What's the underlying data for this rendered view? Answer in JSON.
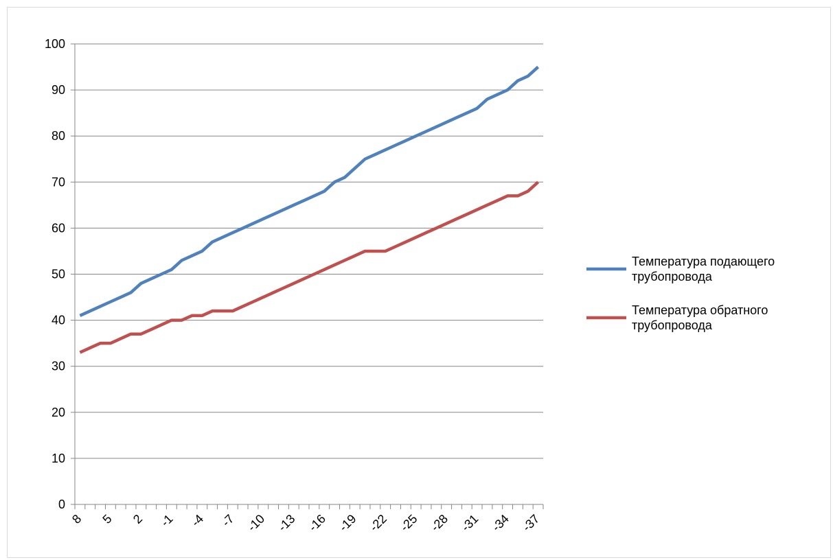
{
  "chart_data": {
    "type": "line",
    "x": [
      8,
      7,
      6,
      5,
      4,
      3,
      2,
      1,
      0,
      -1,
      -2,
      -3,
      -4,
      -5,
      -6,
      -7,
      -8,
      -9,
      -10,
      -11,
      -12,
      -13,
      -14,
      -15,
      -16,
      -17,
      -18,
      -19,
      -20,
      -21,
      -22,
      -23,
      -24,
      -25,
      -26,
      -27,
      -28,
      -29,
      -30,
      -31,
      -32,
      -33,
      -34,
      -35,
      -36,
      -37
    ],
    "x_tick_labels": [
      "8",
      "5",
      "2",
      "-1",
      "-4",
      "-7",
      "-10",
      "-13",
      "-16",
      "-19",
      "-22",
      "-25",
      "-28",
      "-31",
      "-34",
      "-37"
    ],
    "ylim": [
      0,
      100
    ],
    "y_ticks": [
      0,
      10,
      20,
      30,
      40,
      50,
      60,
      70,
      80,
      90,
      100
    ],
    "grid": true,
    "legend_position": "right",
    "series": [
      {
        "name": "Температура подающего трубопровода",
        "color": "#4f81bd",
        "values": [
          41,
          42,
          43,
          44,
          45,
          46,
          48,
          49,
          50,
          51,
          53,
          54,
          55,
          57,
          58,
          59,
          60,
          61,
          62,
          63,
          64,
          65,
          66,
          67,
          68,
          70,
          71,
          73,
          75,
          76,
          77,
          78,
          79,
          80,
          81,
          82,
          83,
          84,
          85,
          86,
          88,
          89,
          90,
          92,
          93,
          95
        ]
      },
      {
        "name": "Температура обратного трубопровода",
        "color": "#c0504d",
        "values": [
          33,
          34,
          35,
          35,
          36,
          37,
          37,
          38,
          39,
          40,
          40,
          41,
          41,
          42,
          42,
          42,
          43,
          44,
          45,
          46,
          47,
          48,
          49,
          50,
          51,
          52,
          53,
          54,
          55,
          55,
          55,
          56,
          57,
          58,
          59,
          60,
          61,
          62,
          63,
          64,
          65,
          66,
          67,
          67,
          68,
          70
        ]
      }
    ]
  }
}
